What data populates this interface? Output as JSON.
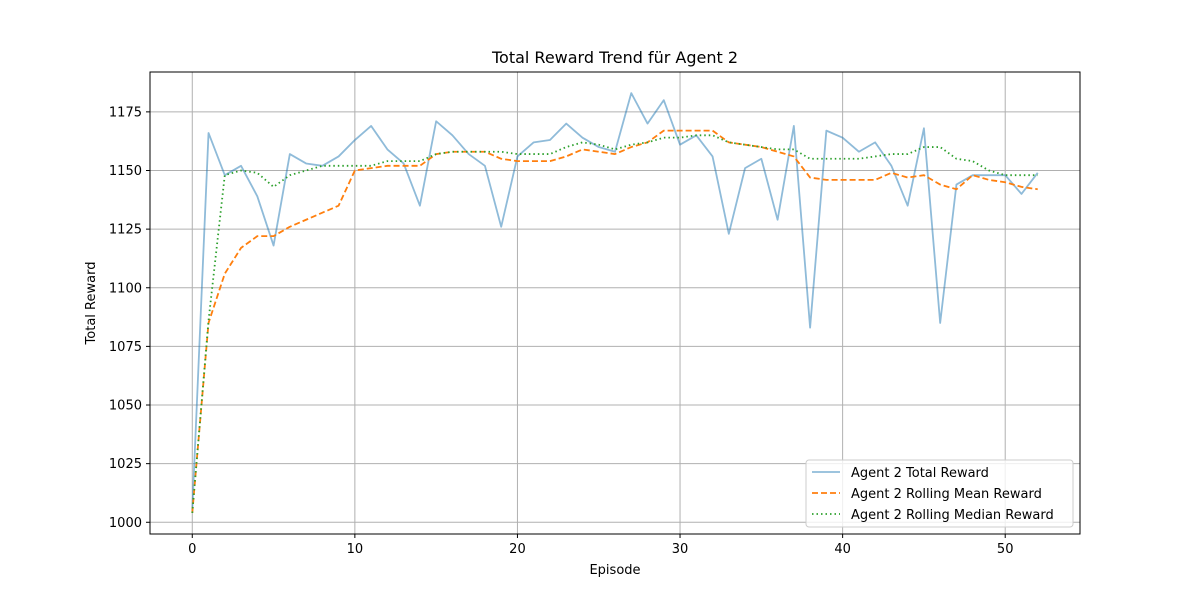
{
  "chart_data": {
    "type": "line",
    "title": "Total Reward Trend für Agent 2",
    "xlabel": "Episode",
    "ylabel": "Total Reward",
    "xlim": [
      -2.6,
      54.6
    ],
    "ylim": [
      995,
      1192
    ],
    "xticks": [
      0,
      10,
      20,
      30,
      40,
      50
    ],
    "yticks": [
      1000,
      1025,
      1050,
      1075,
      1100,
      1125,
      1150,
      1175
    ],
    "grid": true,
    "legend_position": "lower-right",
    "series": [
      {
        "name": "Agent 2 Total Reward",
        "color": "#1f77b4",
        "style": "solid",
        "opacity": 0.5,
        "x": [
          0,
          1,
          2,
          3,
          4,
          5,
          6,
          7,
          8,
          9,
          10,
          11,
          12,
          13,
          14,
          15,
          16,
          17,
          18,
          19,
          20,
          21,
          22,
          23,
          24,
          25,
          26,
          27,
          28,
          29,
          30,
          31,
          32,
          33,
          34,
          35,
          36,
          37,
          38,
          39,
          40,
          41,
          42,
          43,
          44,
          45,
          46,
          47,
          48,
          49,
          50,
          51,
          52
        ],
        "values": [
          1005,
          1166,
          1148,
          1152,
          1139,
          1118,
          1157,
          1153,
          1152,
          1156,
          1163,
          1169,
          1159,
          1153,
          1135,
          1171,
          1165,
          1157,
          1152,
          1126,
          1156,
          1162,
          1163,
          1170,
          1164,
          1160,
          1158,
          1183,
          1170,
          1180,
          1161,
          1165,
          1156,
          1123,
          1151,
          1155,
          1129,
          1169,
          1083,
          1167,
          1164,
          1158,
          1162,
          1152,
          1135,
          1168,
          1085,
          1144,
          1148,
          1148,
          1148,
          1140,
          1149
        ]
      },
      {
        "name": "Agent 2 Rolling Mean Reward",
        "color": "#ff7f0e",
        "style": "dashed",
        "opacity": 1,
        "x": [
          0,
          1,
          2,
          3,
          4,
          5,
          6,
          7,
          8,
          9,
          10,
          11,
          12,
          13,
          14,
          15,
          16,
          17,
          18,
          19,
          20,
          21,
          22,
          23,
          24,
          25,
          26,
          27,
          28,
          29,
          30,
          31,
          32,
          33,
          34,
          35,
          36,
          37,
          38,
          39,
          40,
          41,
          42,
          43,
          44,
          45,
          46,
          47,
          48,
          49,
          50,
          51,
          52
        ],
        "values": [
          1004,
          1085,
          1106,
          1117,
          1122,
          1122,
          1126,
          1129,
          1132,
          1135,
          1150,
          1151,
          1152,
          1152,
          1152,
          1157,
          1158,
          1158,
          1158,
          1155,
          1154,
          1154,
          1154,
          1156,
          1159,
          1158,
          1157,
          1160,
          1162,
          1167,
          1167,
          1167,
          1167,
          1162,
          1161,
          1160,
          1158,
          1156,
          1147,
          1146,
          1146,
          1146,
          1146,
          1149,
          1147,
          1148,
          1144,
          1142,
          1148,
          1146,
          1145,
          1143,
          1142
        ]
      },
      {
        "name": "Agent 2 Rolling Median Reward",
        "color": "#2ca02c",
        "style": "dotted",
        "opacity": 1,
        "x": [
          0,
          1,
          2,
          3,
          4,
          5,
          6,
          7,
          8,
          9,
          10,
          11,
          12,
          13,
          14,
          15,
          16,
          17,
          18,
          19,
          20,
          21,
          22,
          23,
          24,
          25,
          26,
          27,
          28,
          29,
          30,
          31,
          32,
          33,
          34,
          35,
          36,
          37,
          38,
          39,
          40,
          41,
          42,
          43,
          44,
          45,
          46,
          47,
          48,
          49,
          50,
          51,
          52
        ],
        "values": [
          1004,
          1086,
          1148,
          1150,
          1149,
          1143,
          1148,
          1150,
          1152,
          1152,
          1152,
          1152,
          1154,
          1154,
          1154,
          1157,
          1158,
          1158,
          1158,
          1158,
          1157,
          1157,
          1157,
          1160,
          1162,
          1161,
          1159,
          1161,
          1162,
          1164,
          1164,
          1165,
          1165,
          1162,
          1161,
          1160,
          1159,
          1159,
          1155,
          1155,
          1155,
          1155,
          1156,
          1157,
          1157,
          1160,
          1160,
          1155,
          1154,
          1150,
          1148,
          1148,
          1148
        ]
      }
    ]
  }
}
